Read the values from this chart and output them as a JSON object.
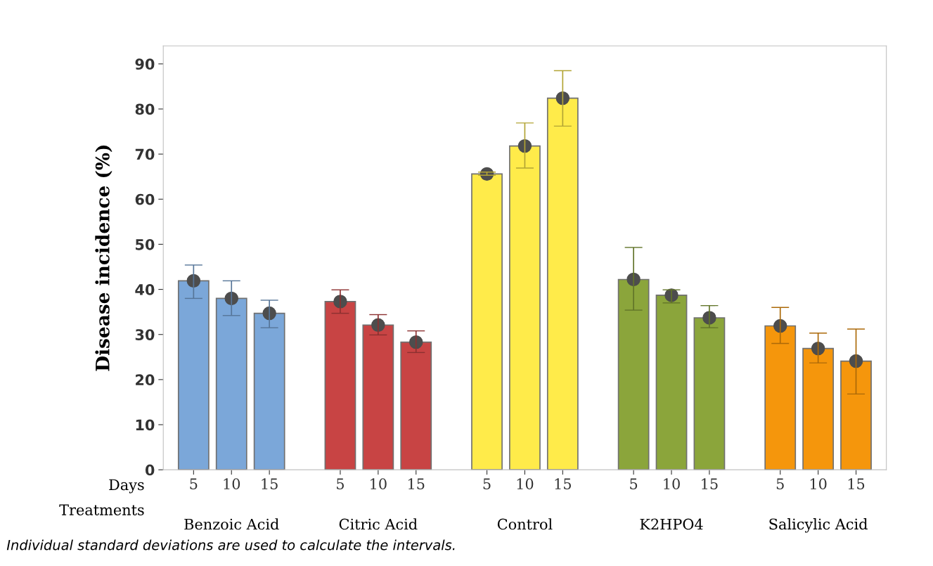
{
  "chart_data": {
    "type": "bar",
    "ylabel": "Disease incidence (%)",
    "categories": [
      "5",
      "10",
      "15",
      "5",
      "10",
      "15",
      "5",
      "10",
      "15",
      "5",
      "10",
      "15",
      "5",
      "10",
      "15"
    ],
    "series": [
      {
        "color": "#7ba7d9",
        "values": [
          41.9,
          38.0,
          34.7,
          null,
          null,
          null,
          null,
          null,
          null,
          null,
          null,
          null,
          null,
          null,
          null
        ],
        "errors": [
          [
            38.0,
            45.4
          ],
          [
            34.2,
            41.9
          ],
          [
            31.5,
            37.6
          ],
          null,
          null,
          null,
          null,
          null,
          null,
          null,
          null,
          null,
          null,
          null,
          null
        ]
      },
      {
        "color": "#c84444",
        "values": [
          null,
          null,
          null,
          37.3,
          32.1,
          28.3,
          null,
          null,
          null,
          null,
          null,
          null,
          null,
          null,
          null
        ],
        "errors": [
          null,
          null,
          null,
          [
            34.7,
            39.9
          ],
          [
            29.9,
            34.4
          ],
          [
            26.0,
            30.8
          ],
          null,
          null,
          null,
          null,
          null,
          null,
          null,
          null,
          null
        ]
      },
      {
        "color": "#ffeb4a",
        "values": [
          null,
          null,
          null,
          null,
          null,
          null,
          65.6,
          71.8,
          82.4,
          null,
          null,
          null,
          null,
          null,
          null
        ],
        "errors": [
          null,
          null,
          null,
          null,
          null,
          null,
          [
            65.3,
            66.0
          ],
          [
            66.9,
            76.9
          ],
          [
            76.2,
            88.5
          ],
          null,
          null,
          null,
          null,
          null,
          null
        ]
      },
      {
        "color": "#8ba53b",
        "values": [
          null,
          null,
          null,
          null,
          null,
          null,
          null,
          null,
          null,
          42.2,
          38.7,
          33.7,
          null,
          null,
          null
        ],
        "errors": [
          null,
          null,
          null,
          null,
          null,
          null,
          null,
          null,
          null,
          [
            35.4,
            49.3
          ],
          [
            37.0,
            39.9
          ],
          [
            31.5,
            36.4
          ],
          null,
          null,
          null
        ]
      },
      {
        "color": "#f5960c",
        "values": [
          null,
          null,
          null,
          null,
          null,
          null,
          null,
          null,
          null,
          null,
          null,
          null,
          31.9,
          26.9,
          24.1
        ],
        "errors": [
          null,
          null,
          null,
          null,
          null,
          null,
          null,
          null,
          null,
          null,
          null,
          null,
          [
            28.0,
            36.0
          ],
          [
            23.7,
            30.3
          ],
          [
            16.8,
            31.2
          ]
        ]
      },
      {
        "type": "scatter",
        "color": "#4d4d4d",
        "marker": "circle",
        "values": [
          41.9,
          38.0,
          34.7,
          37.3,
          32.1,
          28.3,
          65.6,
          71.8,
          82.4,
          42.2,
          38.7,
          33.7,
          31.9,
          26.9,
          24.1
        ]
      }
    ],
    "ylim": [
      0,
      94
    ],
    "yticks": [
      0,
      10,
      20,
      30,
      40,
      50,
      60,
      70,
      80,
      90
    ],
    "grid": false,
    "legend": false,
    "annotations": [
      "Days",
      "Treatments",
      "Benzoic Acid",
      "Citric Acid",
      "Control",
      "K2HPO4",
      "Salicylic Acid",
      "Individual standard deviations are used to calculate the intervals."
    ]
  }
}
